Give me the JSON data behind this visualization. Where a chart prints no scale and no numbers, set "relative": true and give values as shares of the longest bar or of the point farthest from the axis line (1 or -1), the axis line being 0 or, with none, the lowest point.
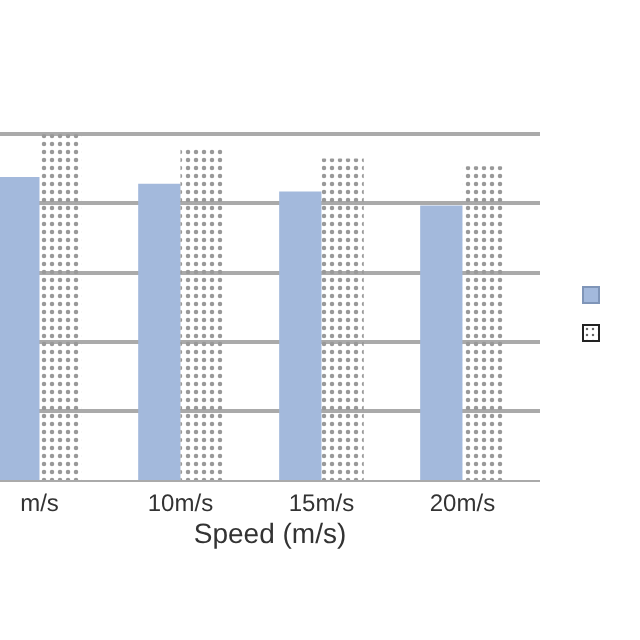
{
  "chart_data": {
    "type": "bar",
    "xlabel": "Speed (m/s)",
    "relative": true,
    "grid": "y",
    "categories": [
      "m/s",
      "10m/s",
      "15m/s",
      "20m/s"
    ],
    "series": [
      {
        "color": "#a3b9dc",
        "values": [
          0.876,
          0.857,
          0.834,
          0.794
        ]
      },
      {
        "color": "#ffffff",
        "values": [
          1,
          0.96,
          0.93,
          0.907
        ]
      }
    ]
  }
}
